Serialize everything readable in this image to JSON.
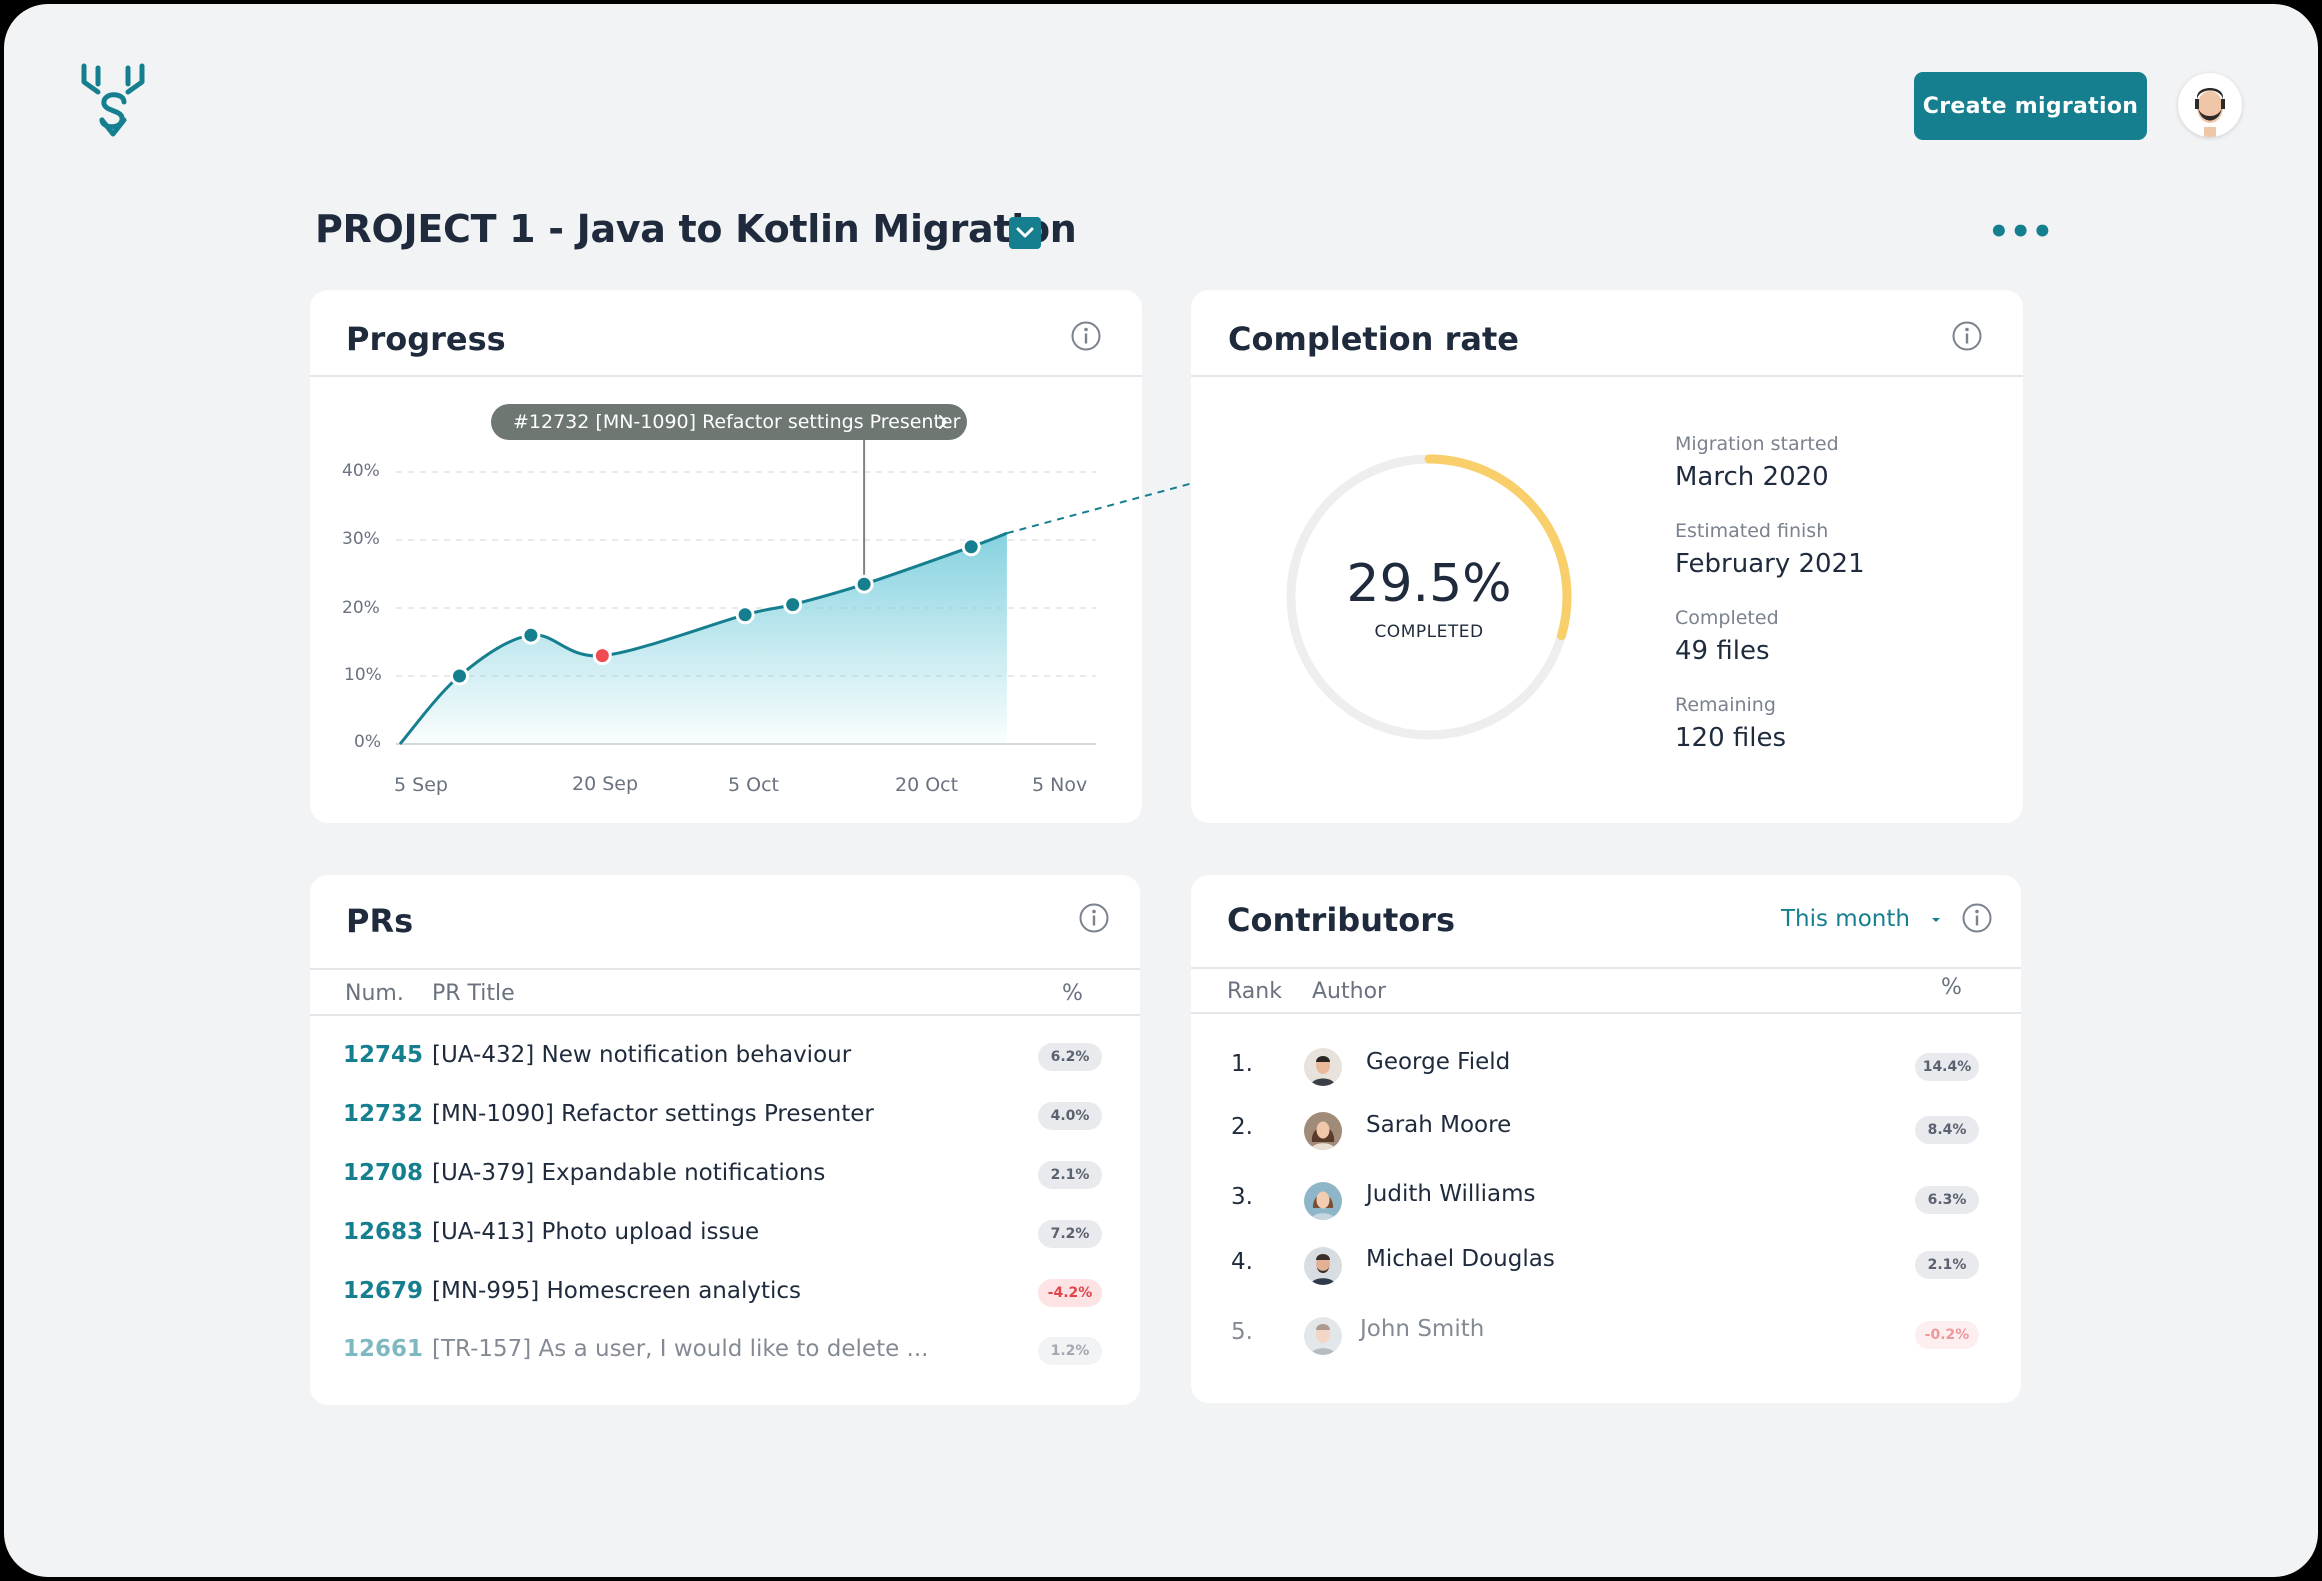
{
  "header": {
    "logo_icon": "deer-antler-logo-icon",
    "create_label": "Create migration",
    "avatar_icon": "user-avatar-icon"
  },
  "project": {
    "title": "PROJECT 1 - Java to Kotlin Migration",
    "checked": true,
    "more_icon": "more-dots-icon"
  },
  "colors": {
    "accent": "#157f8f",
    "area_fill": "#7fd0de",
    "highlight_point": "#ef4b50",
    "ring_progress": "#f8cf6a",
    "ring_track": "#eeeeef"
  },
  "progress": {
    "title": "Progress",
    "tooltip": "#12732 [MN-1090] Refactor settings Presenter",
    "chart_data": {
      "type": "area",
      "x_ticks": [
        "5 Sep",
        "20 Sep",
        "5 Oct",
        "20 Oct",
        "5 Nov"
      ],
      "y_ticks": [
        "0%",
        "10%",
        "20%",
        "30%",
        "40%"
      ],
      "ylim": [
        0,
        40
      ],
      "x": [
        "3 Sep",
        "8 Sep",
        "14 Sep",
        "20 Sep",
        "2 Oct",
        "6 Oct",
        "12 Oct",
        "21 Oct",
        "24 Oct"
      ],
      "values": [
        0,
        10,
        16,
        13,
        19,
        20.5,
        23.5,
        29,
        31
      ],
      "markers": [
        {
          "x": "8 Sep",
          "y": 10
        },
        {
          "x": "14 Sep",
          "y": 16
        },
        {
          "x": "20 Sep",
          "y": 13,
          "highlight": true
        },
        {
          "x": "2 Oct",
          "y": 19
        },
        {
          "x": "6 Oct",
          "y": 20.5
        },
        {
          "x": "12 Oct",
          "y": 23.5,
          "selected": true
        },
        {
          "x": "21 Oct",
          "y": 29
        }
      ],
      "projection": [
        {
          "x": "24 Oct",
          "y": 31
        },
        {
          "x": "11 Nov",
          "y": 39.5
        }
      ],
      "grid": true
    }
  },
  "completion": {
    "title": "Completion  rate",
    "percent_label": "29.5%",
    "percent_value": 29.5,
    "sub_label": "COMPLETED",
    "stats": [
      {
        "label": "Migration started",
        "value": "March 2020"
      },
      {
        "label": "Estimated finish",
        "value": "February 2021"
      },
      {
        "label": "Completed",
        "value": "49 files"
      },
      {
        "label": "Remaining",
        "value": "120 files"
      }
    ]
  },
  "prs": {
    "title": "PRs",
    "columns": {
      "num": "Num.",
      "title": "PR Title",
      "pct": "%"
    },
    "rows": [
      {
        "num": "12745",
        "title": "[UA-432] New notification behaviour",
        "pct": "6.2%",
        "neg": false
      },
      {
        "num": "12732",
        "title": "[MN-1090] Refactor settings Presenter",
        "pct": "4.0%",
        "neg": false
      },
      {
        "num": "12708",
        "title": "[UA-379] Expandable notifications",
        "pct": "2.1%",
        "neg": false
      },
      {
        "num": "12683",
        "title": "[UA-413] Photo upload issue",
        "pct": "7.2%",
        "neg": false
      },
      {
        "num": "12679",
        "title": "[MN-995] Homescreen analytics",
        "pct": "-4.2%",
        "neg": true
      },
      {
        "num": "12661",
        "title": "[TR-157] As a user, I would like to delete ...",
        "pct": "1.2%",
        "neg": false
      }
    ]
  },
  "contributors": {
    "title": "Contributors",
    "filter": "This month",
    "columns": {
      "rank": "Rank",
      "author": "Author",
      "pct": "%"
    },
    "rows": [
      {
        "rank": "1.",
        "name": "George Field",
        "pct": "14.4%",
        "neg": false
      },
      {
        "rank": "2.",
        "name": "Sarah Moore",
        "pct": "8.4%",
        "neg": false
      },
      {
        "rank": "3.",
        "name": "Judith Williams",
        "pct": "6.3%",
        "neg": false
      },
      {
        "rank": "4.",
        "name": "Michael Douglas",
        "pct": "2.1%",
        "neg": false
      },
      {
        "rank": "5.",
        "name": "John Smith",
        "pct": "-0.2%",
        "neg": true
      }
    ]
  }
}
